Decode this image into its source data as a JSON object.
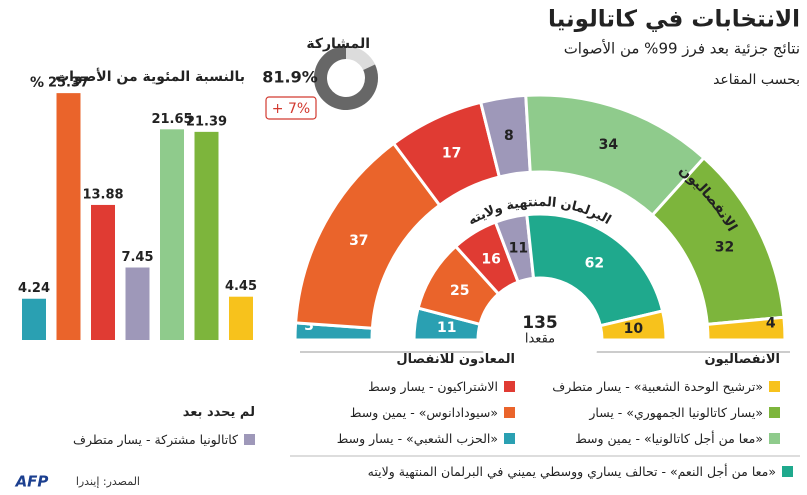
{
  "title": "الانتخابات في كاتالونيا",
  "subtitle": "نتائج جزئية بعد فرز 99% من الأصوات",
  "subtitle2": "بحسب المقاعد",
  "chart_data": [
    {
      "type": "bar",
      "title": "بالنسبة المئوية من الأصوات",
      "unit": "%",
      "values": [
        4.24,
        25.37,
        13.88,
        7.45,
        21.65,
        21.39,
        4.45
      ],
      "colors": [
        "#2aa0b2",
        "#ea642b",
        "#e03b33",
        "#9e98b9",
        "#8fcb8c",
        "#7db53c",
        "#f7c21c"
      ],
      "ylim": [
        0,
        26
      ]
    },
    {
      "type": "hemicycle",
      "total": 135,
      "total_label": "مقعدا",
      "arc_label": "الانفصاليون",
      "inner_label": "البرلمان المنتهية ولايته",
      "series": [
        {
          "values": [
            3,
            37,
            17,
            8,
            34,
            32,
            4
          ],
          "colors": [
            "#2aa0b2",
            "#ea642b",
            "#e03b33",
            "#9e98b9",
            "#8fcb8c",
            "#7db53c",
            "#f7c21c"
          ]
        },
        {
          "values": [
            11,
            25,
            16,
            11,
            62,
            10
          ],
          "colors": [
            "#2aa0b2",
            "#ea642b",
            "#e03b33",
            "#9e98b9",
            "#1fa98d",
            "#f7c21c"
          ]
        }
      ]
    },
    {
      "type": "donut",
      "title": "المشاركة",
      "values": [
        81.9
      ],
      "value_labels": [
        "81.9%"
      ],
      "ylim": [
        0,
        100
      ],
      "change": "+ 7%",
      "color": "#676767"
    }
  ],
  "legend": {
    "groups": [
      {
        "title": "الانفصاليون",
        "items": [
          {
            "label": "«ترشيح الوحدة الشعبية» - يسار متطرف",
            "color": "#f7c21c"
          },
          {
            "label": "«يسار كاتالونيا الجمهوري» - يسار",
            "color": "#7db53c"
          },
          {
            "label": "«معا من أجل كاتالونيا» - يمين وسط",
            "color": "#8fcb8c"
          }
        ]
      },
      {
        "title": "المعادون للانفصال",
        "items": [
          {
            "label": "الاشتراكيون - يسار وسط",
            "color": "#e03b33"
          },
          {
            "label": "«سيودادانوس» - يمين وسط",
            "color": "#ea642b"
          },
          {
            "label": "«الحزب الشعبي» - يسار وسط",
            "color": "#2aa0b2"
          }
        ]
      },
      {
        "title": "لم يحدد بعد",
        "items": [
          {
            "label": "كاتالونيا مشتركة - يسار متطرف",
            "color": "#9e98b9"
          }
        ]
      },
      {
        "items": [
          {
            "label": "«معا من أجل النعم» - تحالف يساري ووسطي يميني في البرلمان المنتهية ولايته",
            "color": "#1fa98d"
          }
        ]
      }
    ]
  },
  "source": "المصدر: إيندرا",
  "logo": "AFP"
}
